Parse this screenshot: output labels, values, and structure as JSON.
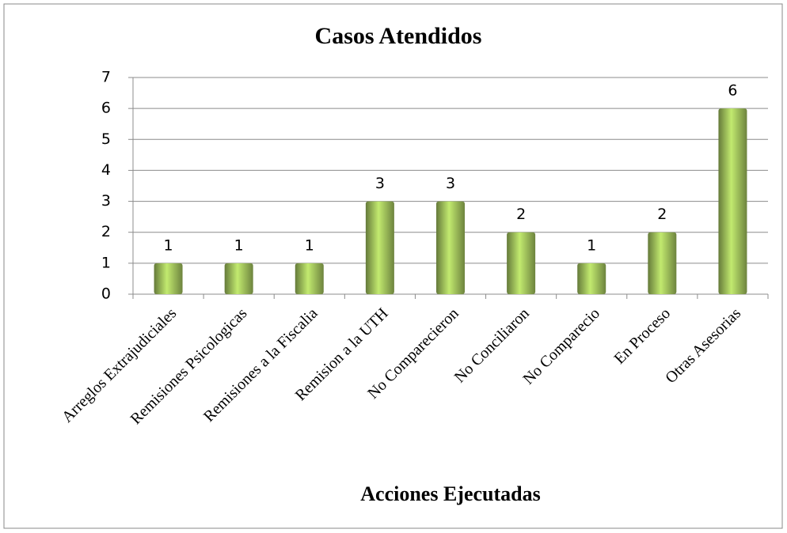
{
  "chart_data": {
    "type": "bar",
    "title": "Casos Atendidos",
    "x_label": "Acciones Ejecutadas",
    "categories": [
      "Arreglos Extrajudiciales",
      "Remisiones Psicologicas",
      "Remisiones a la Fiscalia",
      "Remision a la UTH",
      "No Comparecieron",
      "No Conciliaron",
      "No Comparecio",
      "En Proceso",
      "Otras Asesorias"
    ],
    "values": [
      1,
      1,
      1,
      3,
      3,
      2,
      1,
      2,
      6
    ],
    "color": "#9bbb59",
    "ylim": [
      0,
      7
    ],
    "yticks": [
      0,
      1,
      2,
      3,
      4,
      5,
      6,
      7
    ],
    "grid": true
  }
}
